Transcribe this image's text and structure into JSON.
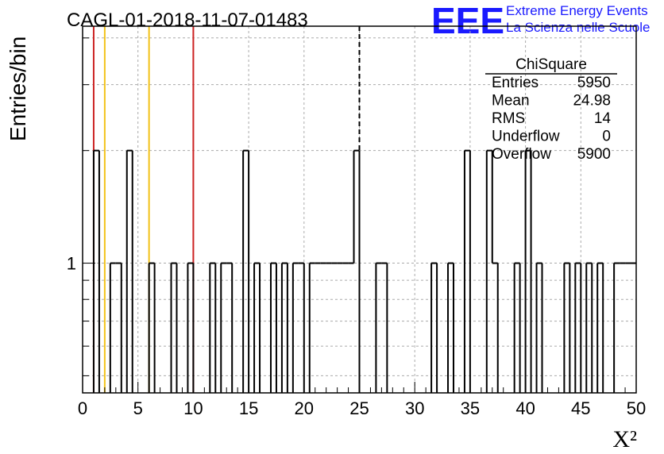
{
  "chart_data": {
    "type": "histogram",
    "title": "CAGL-01-2018-11-07-01483",
    "xlabel": "X²",
    "ylabel": "Entries/bin",
    "x_range": [
      0,
      50
    ],
    "y_log_scale": true,
    "y_range": [
      0.45,
      4.3
    ],
    "grid": true,
    "bin_width": 0.5,
    "x_ticks": [
      "0",
      "5",
      "10",
      "15",
      "20",
      "25",
      "30",
      "35",
      "40",
      "45",
      "50"
    ],
    "y_ticks": [
      "1"
    ],
    "bins": [
      {
        "x": 1.0,
        "y": 2
      },
      {
        "x": 2.5,
        "y": 1
      },
      {
        "x": 3.0,
        "y": 1
      },
      {
        "x": 4.0,
        "y": 2
      },
      {
        "x": 6.0,
        "y": 1
      },
      {
        "x": 8.0,
        "y": 1
      },
      {
        "x": 9.5,
        "y": 1
      },
      {
        "x": 11.5,
        "y": 1
      },
      {
        "x": 12.5,
        "y": 1
      },
      {
        "x": 13.0,
        "y": 1
      },
      {
        "x": 14.5,
        "y": 2
      },
      {
        "x": 15.5,
        "y": 1
      },
      {
        "x": 17.0,
        "y": 1
      },
      {
        "x": 18.0,
        "y": 1
      },
      {
        "x": 19.0,
        "y": 1
      },
      {
        "x": 19.5,
        "y": 1
      },
      {
        "x": 20.5,
        "y": 1
      },
      {
        "x": 21.0,
        "y": 1
      },
      {
        "x": 21.5,
        "y": 1
      },
      {
        "x": 22.0,
        "y": 1
      },
      {
        "x": 22.5,
        "y": 1
      },
      {
        "x": 23.0,
        "y": 1
      },
      {
        "x": 23.5,
        "y": 1
      },
      {
        "x": 24.0,
        "y": 1
      },
      {
        "x": 24.5,
        "y": 2
      },
      {
        "x": 26.5,
        "y": 1
      },
      {
        "x": 27.0,
        "y": 1
      },
      {
        "x": 31.5,
        "y": 1
      },
      {
        "x": 33.0,
        "y": 1
      },
      {
        "x": 34.5,
        "y": 2
      },
      {
        "x": 36.5,
        "y": 2
      },
      {
        "x": 37.0,
        "y": 1
      },
      {
        "x": 39.0,
        "y": 1
      },
      {
        "x": 40.0,
        "y": 2
      },
      {
        "x": 41.0,
        "y": 1
      },
      {
        "x": 43.5,
        "y": 1
      },
      {
        "x": 44.5,
        "y": 1
      },
      {
        "x": 45.5,
        "y": 1
      },
      {
        "x": 46.5,
        "y": 1
      },
      {
        "x": 48.0,
        "y": 1
      },
      {
        "x": 48.5,
        "y": 1
      },
      {
        "x": 49.0,
        "y": 1
      },
      {
        "x": 49.5,
        "y": 1
      }
    ],
    "reference_lines": [
      {
        "x": 1,
        "color": "#cc2222"
      },
      {
        "x": 2,
        "color": "#f2c21a"
      },
      {
        "x": 6,
        "color": "#f2c21a"
      },
      {
        "x": 10,
        "color": "#cc2222"
      }
    ],
    "dashed_line_x": 25,
    "stats_box": {
      "title": "ChiSquare",
      "rows": [
        {
          "label": "Entries",
          "value": "5950"
        },
        {
          "label": "Mean",
          "value": "24.98"
        },
        {
          "label": "RMS",
          "value": "14"
        },
        {
          "label": "Underflow",
          "value": "0"
        },
        {
          "label": "Overflow",
          "value": "5900"
        }
      ]
    },
    "logo": {
      "text": "EEE",
      "line1": "Extreme Energy Events",
      "line2": "La Scienza nelle Scuole"
    }
  }
}
